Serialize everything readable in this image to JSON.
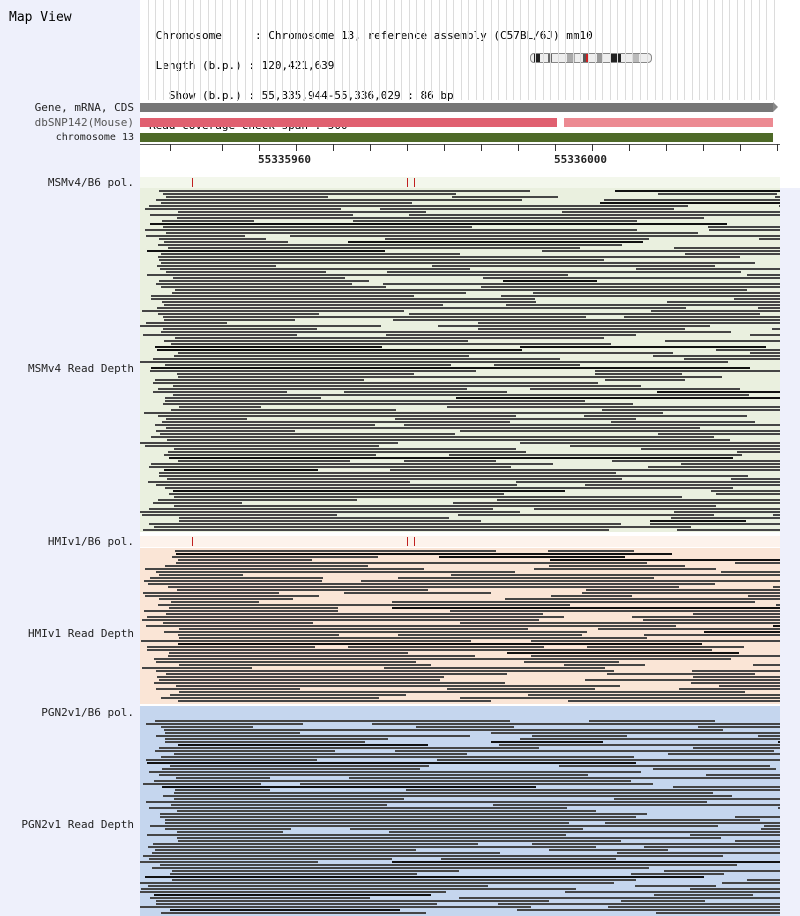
{
  "map_view": {
    "title": "Map View",
    "info": [
      " Chromosome     : Chromosome 13, reference assembly (C57BL/6J) mm10",
      " Length (b.p.) : 120,421,639",
      "   Show (b.p.) : 55,335,944-55,336,029 : 86 bp",
      "Read coverage check span : 500"
    ]
  },
  "tracks": {
    "gene": {
      "label": "Gene, mRNA, CDS",
      "color": "#777777"
    },
    "dbsnp": {
      "label": "dbSNP142(Mouse)",
      "color": "#e06070",
      "color2": "#ec8a92"
    },
    "chrom": {
      "label": "chromosome 13",
      "color": "#4e6a28"
    }
  },
  "ruler": {
    "labels": [
      "55335960",
      "55336000"
    ]
  },
  "sections": [
    {
      "pol_label": "MSMv4/B6 pol.",
      "depth_label": "MSMv4 Read Depth",
      "bg": "#eaf0df",
      "pol_bg": "#f3f7ec"
    },
    {
      "pol_label": "HMIv1/B6 pol.",
      "depth_label": "HMIv1 Read Depth",
      "bg": "#fae5d6",
      "pol_bg": "#fdf3ec"
    },
    {
      "pol_label": "PGN2v1/B6 pol.",
      "depth_label": "PGN2v1 Read Depth",
      "bg": "#c5d6ee",
      "pol_bg": "#c5d6ee"
    }
  ]
}
